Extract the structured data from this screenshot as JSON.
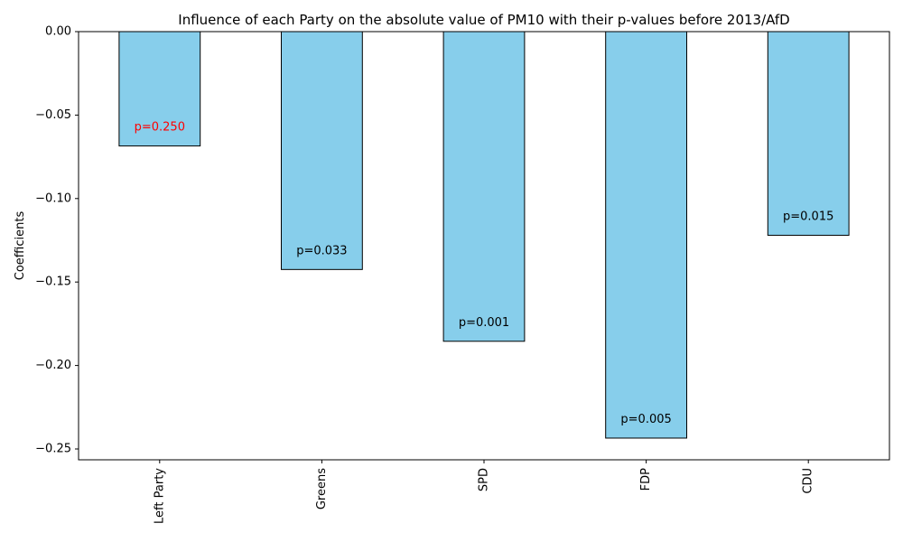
{
  "chart_data": {
    "type": "bar",
    "title": "Influence of each Party on the absolute value of PM10 with their p-values before 2013/AfD",
    "xlabel": "",
    "ylabel": "Coefficients",
    "categories": [
      "Left Party",
      "Greens",
      "SPD",
      "FDP",
      "CDU"
    ],
    "values": [
      -0.0685,
      -0.1425,
      -0.1855,
      -0.2435,
      -0.122
    ],
    "p_value_labels": [
      "p=0.250",
      "p=0.033",
      "p=0.001",
      "p=0.005",
      "p=0.015"
    ],
    "p_value_label_colors": [
      "#ff0000",
      "#000000",
      "#000000",
      "#000000",
      "#000000"
    ],
    "ylim": [
      -0.2565,
      0.0
    ],
    "yticks": [
      0.0,
      -0.05,
      -0.1,
      -0.15,
      -0.2,
      -0.25
    ],
    "ytick_labels": [
      "0.00",
      "−0.05",
      "−0.10",
      "−0.15",
      "−0.20",
      "−0.25"
    ],
    "grid": false,
    "legend": "none",
    "colors": {
      "bar_fill": "#87ceeb",
      "bar_edge": "#000000",
      "axis": "#000000"
    }
  }
}
